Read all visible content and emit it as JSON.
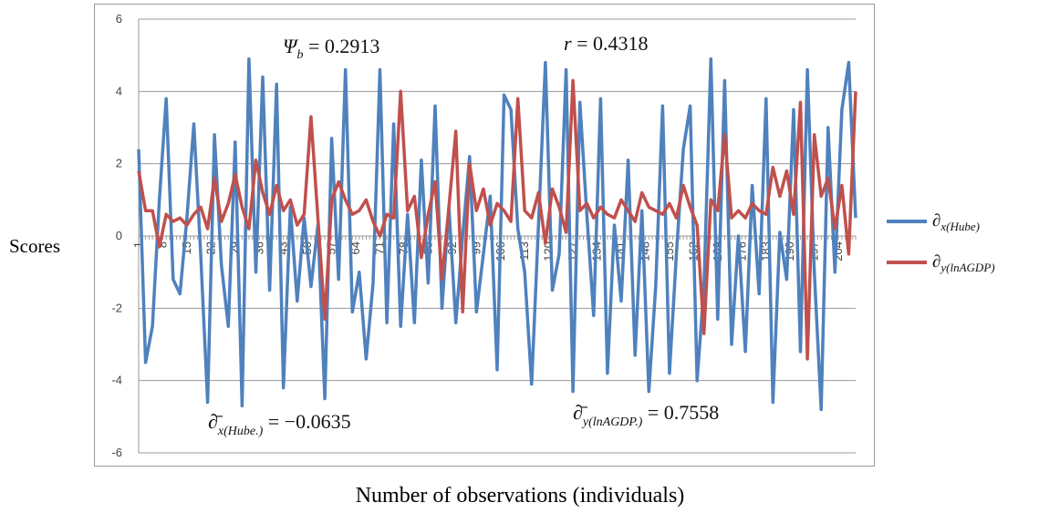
{
  "chart_data": {
    "type": "line",
    "xlabel": "Number of observations (individuals)",
    "ylabel": "Scores",
    "ylim": [
      -6,
      6
    ],
    "yticks": [
      -6,
      -4,
      -2,
      0,
      2,
      4,
      6
    ],
    "xlim": [
      1,
      209
    ],
    "xtick_labels": [
      1,
      8,
      15,
      22,
      29,
      36,
      43,
      50,
      57,
      64,
      71,
      78,
      85,
      92,
      99,
      106,
      113,
      120,
      127,
      134,
      141,
      148,
      155,
      162,
      169,
      176,
      183,
      190,
      197,
      204
    ],
    "grid": "horizontal",
    "legend_position": "right",
    "annotations": [
      {
        "id": "psi",
        "text": "Ψb = 0.2913"
      },
      {
        "id": "r",
        "text": "r = 0.4318"
      },
      {
        "id": "mean-x",
        "text": "∂̄x(Hube.) = −0.0635"
      },
      {
        "id": "mean-y",
        "text": "∂̄y(lnAGDP.) = 0.7558"
      }
    ],
    "series": [
      {
        "name": "∂x(Hube)",
        "color": "#4f81bd",
        "x": [
          1,
          3,
          5,
          7,
          9,
          11,
          13,
          15,
          17,
          19,
          21,
          23,
          25,
          27,
          29,
          31,
          33,
          35,
          37,
          39,
          41,
          43,
          45,
          47,
          49,
          51,
          53,
          55,
          57,
          59,
          61,
          63,
          65,
          67,
          69,
          71,
          73,
          75,
          77,
          79,
          81,
          83,
          85,
          87,
          89,
          91,
          93,
          95,
          97,
          99,
          101,
          103,
          105,
          107,
          109,
          111,
          113,
          115,
          117,
          119,
          121,
          123,
          125,
          127,
          129,
          131,
          133,
          135,
          137,
          139,
          141,
          143,
          145,
          147,
          149,
          151,
          153,
          155,
          157,
          159,
          161,
          163,
          165,
          167,
          169,
          171,
          173,
          175,
          177,
          179,
          181,
          183,
          185,
          187,
          189,
          191,
          193,
          195,
          197,
          199,
          201,
          203,
          205,
          207,
          209
        ],
        "values": [
          2.4,
          -3.5,
          -2.5,
          1.0,
          3.8,
          -1.2,
          -1.6,
          0.5,
          3.1,
          -0.5,
          -4.6,
          2.8,
          -0.8,
          -2.5,
          2.6,
          -4.7,
          4.9,
          -1.0,
          4.4,
          -1.5,
          4.2,
          -4.2,
          0.8,
          -1.8,
          0.5,
          -1.4,
          0.3,
          -4.5,
          2.7,
          -1.2,
          4.6,
          -2.1,
          -1.0,
          -3.4,
          -1.3,
          4.6,
          -2.4,
          3.1,
          -2.5,
          0.6,
          -2.4,
          2.1,
          -1.3,
          3.6,
          -2.0,
          0.8,
          -2.4,
          0.0,
          2.2,
          -2.1,
          -0.5,
          1.1,
          -3.7,
          3.9,
          3.5,
          0.2,
          -1.0,
          -4.1,
          0.3,
          4.8,
          -1.5,
          -0.5,
          4.6,
          -4.3,
          3.7,
          0.6,
          -2.2,
          3.8,
          -3.8,
          0.3,
          -1.8,
          2.1,
          -3.3,
          0.7,
          -4.3,
          -1.4,
          3.6,
          -3.8,
          -0.5,
          2.4,
          3.6,
          -4.0,
          -1.4,
          4.9,
          -2.3,
          4.3,
          -3.0,
          0.0,
          -3.2,
          1.4,
          -1.6,
          3.8,
          -4.6,
          0.1,
          -1.2,
          3.5,
          -3.2,
          4.6,
          -1.0,
          -4.8,
          3.0,
          -1.0,
          3.5,
          4.8,
          0.5
        ]
      },
      {
        "name": "∂y(lnAGDP)",
        "color": "#c0504d",
        "x": [
          1,
          3,
          5,
          7,
          9,
          11,
          13,
          15,
          17,
          19,
          21,
          23,
          25,
          27,
          29,
          31,
          33,
          35,
          37,
          39,
          41,
          43,
          45,
          47,
          49,
          51,
          53,
          55,
          57,
          59,
          61,
          63,
          65,
          67,
          69,
          71,
          73,
          75,
          77,
          79,
          81,
          83,
          85,
          87,
          89,
          91,
          93,
          95,
          97,
          99,
          101,
          103,
          105,
          107,
          109,
          111,
          113,
          115,
          117,
          119,
          121,
          123,
          125,
          127,
          129,
          131,
          133,
          135,
          137,
          139,
          141,
          143,
          145,
          147,
          149,
          151,
          153,
          155,
          157,
          159,
          161,
          163,
          165,
          167,
          169,
          171,
          173,
          175,
          177,
          179,
          181,
          183,
          185,
          187,
          189,
          191,
          193,
          195,
          197,
          199,
          201,
          203,
          205,
          207,
          209
        ],
        "values": [
          1.8,
          0.7,
          0.7,
          -0.3,
          0.6,
          0.4,
          0.5,
          0.3,
          0.6,
          0.8,
          0.2,
          1.6,
          0.4,
          0.9,
          1.7,
          0.8,
          0.2,
          2.1,
          1.2,
          0.6,
          1.4,
          0.7,
          1.0,
          0.3,
          0.6,
          3.3,
          0.5,
          -2.3,
          1.0,
          1.5,
          1.0,
          0.6,
          0.7,
          1.0,
          0.4,
          0.0,
          0.6,
          0.5,
          4.0,
          0.7,
          1.1,
          -0.6,
          0.6,
          1.5,
          -1.2,
          0.8,
          2.9,
          -2.1,
          2.0,
          0.7,
          1.3,
          0.3,
          0.9,
          0.7,
          0.4,
          3.8,
          0.7,
          0.5,
          1.2,
          -0.2,
          1.3,
          0.8,
          0.1,
          4.3,
          0.7,
          0.9,
          0.5,
          0.8,
          0.6,
          0.5,
          1.0,
          0.7,
          0.4,
          1.2,
          0.8,
          0.7,
          0.6,
          0.9,
          0.5,
          1.4,
          0.8,
          0.3,
          -2.7,
          1.0,
          0.7,
          2.8,
          0.5,
          0.7,
          0.5,
          0.9,
          0.7,
          0.6,
          1.9,
          1.1,
          1.8,
          0.6,
          3.7,
          -3.4,
          2.8,
          1.1,
          1.6,
          0.2,
          1.4,
          -0.5,
          4.0
        ]
      }
    ]
  }
}
